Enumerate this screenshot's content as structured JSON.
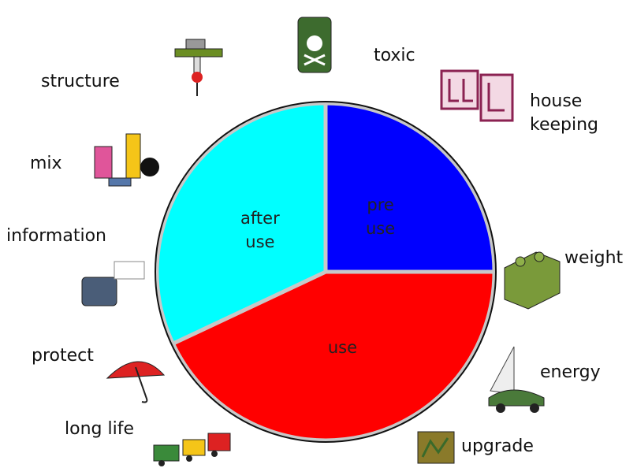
{
  "chart_data": {
    "type": "pie",
    "categories": [
      "pre use",
      "use",
      "after use"
    ],
    "values": [
      25,
      43,
      32
    ],
    "colors": [
      "#0000ff",
      "#ff0000",
      "#00ffff"
    ],
    "annotations": [
      "toxic",
      "house keeping",
      "weight",
      "energy",
      "upgrade",
      "long life",
      "protect",
      "information",
      "mix",
      "structure"
    ]
  }
}
